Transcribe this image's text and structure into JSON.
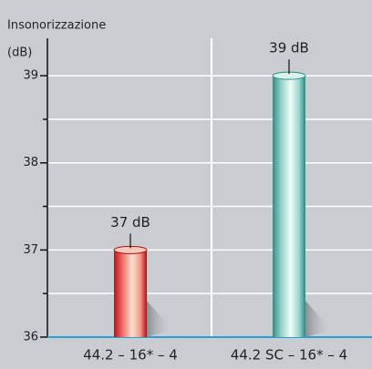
{
  "chart_data": {
    "type": "bar",
    "title": "Insonorizzazione",
    "y_label": "(dB)",
    "categories": [
      "44.2 – 16* – 4",
      "44.2 SC – 16* – 4"
    ],
    "values": [
      37,
      39
    ],
    "value_labels": [
      "37 dB",
      "39 dB"
    ],
    "colors": [
      "#c0282d",
      "#2aa57a"
    ],
    "ylim": [
      36,
      39.43
    ],
    "yticks": [
      36,
      37,
      38,
      39
    ],
    "minor_yticks": [
      36.5,
      37.5,
      38.5
    ],
    "grid": true
  }
}
